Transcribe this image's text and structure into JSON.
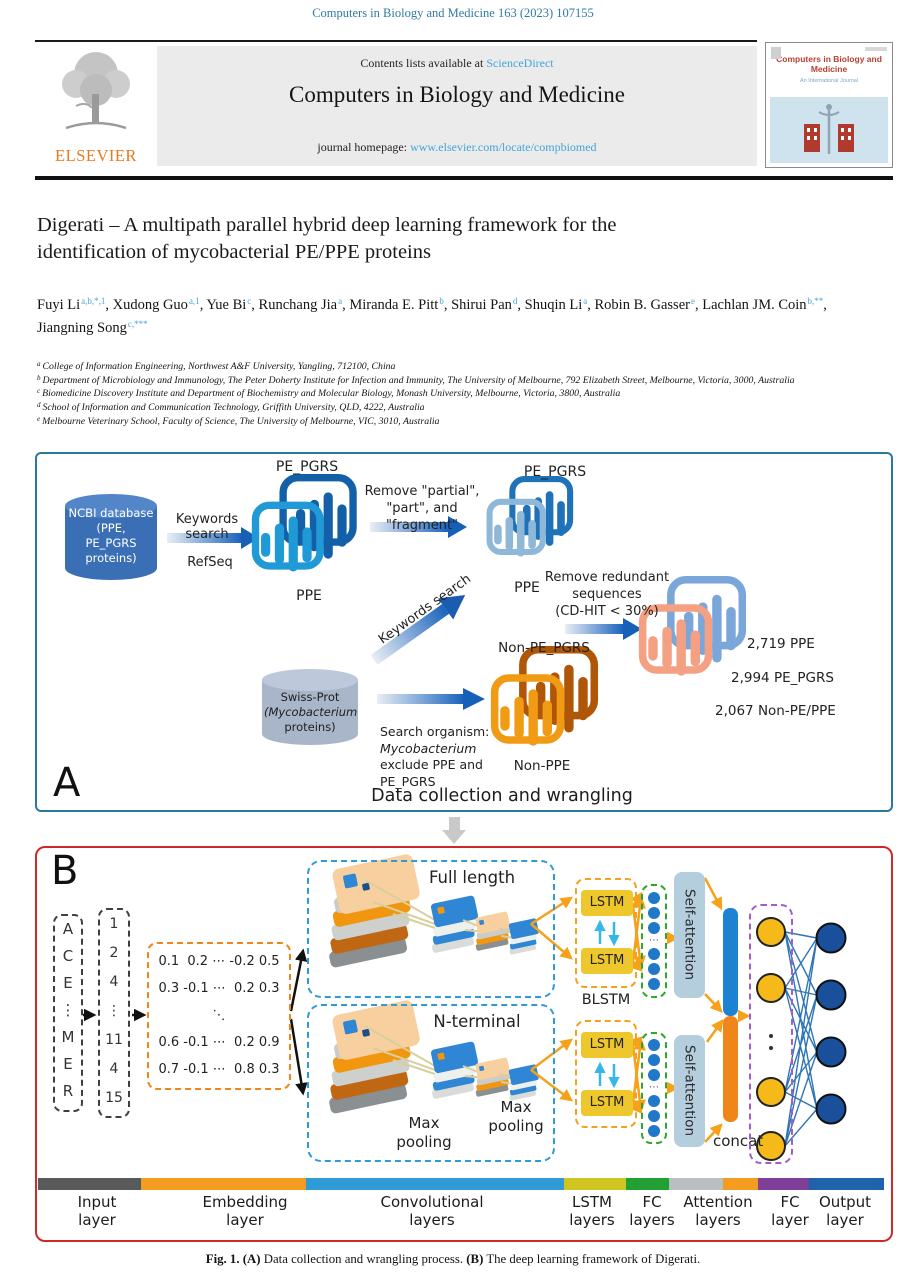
{
  "masthead": {
    "citation": "Computers in Biology and Medicine 163 (2023) 107155",
    "contents_prefix": "Contents lists available at",
    "sciencedirect_link": "ScienceDirect",
    "journal_title": "Computers in Biology and Medicine",
    "homepage_prefix": "journal homepage:",
    "homepage_url": "www.elsevier.com/locate/compbiomed",
    "elsevier_wordmark": "ELSEVIER",
    "cover": {
      "title": "Computers in Biology and Medicine",
      "subtitle": "An International Journal"
    }
  },
  "article": {
    "title": "Digerati – A multipath parallel hybrid deep learning framework for the\nidentification of mycobacterial PE/PPE proteins",
    "authors": [
      {
        "name": "Fuyi Li",
        "sup": "a,b,*,1"
      },
      {
        "name": "Xudong Guo",
        "sup": "a,1"
      },
      {
        "name": "Yue Bi",
        "sup": "c"
      },
      {
        "name": "Runchang Jia",
        "sup": "a"
      },
      {
        "name": "Miranda E. Pitt",
        "sup": "b"
      },
      {
        "name": "Shirui Pan",
        "sup": "d"
      },
      {
        "name": "Shuqin Li",
        "sup": "a"
      },
      {
        "name": "Robin B. Gasser",
        "sup": "e"
      },
      {
        "name": "Lachlan JM. Coin",
        "sup": "b,**"
      },
      {
        "name": "Jiangning Song",
        "sup": "c,***"
      }
    ],
    "affiliations": [
      {
        "sup": "a",
        "text": "College of Information Engineering, Northwest A&F University, Yangling, 712100, China"
      },
      {
        "sup": "b",
        "text": "Department of Microbiology and Immunology, The Peter Doherty Institute for Infection and Immunity, The University of Melbourne, 792 Elizabeth Street, Melbourne, Victoria, 3000, Australia"
      },
      {
        "sup": "c",
        "text": "Biomedicine Discovery Institute and Department of Biochemistry and Molecular Biology, Monash University, Melbourne, Victoria, 3800, Australia"
      },
      {
        "sup": "d",
        "text": "School of Information and Communication Technology, Griffith University, QLD, 4222, Australia"
      },
      {
        "sup": "e",
        "text": "Melbourne Veterinary School, Faculty of Science, The University of Melbourne, VIC, 3010, Australia"
      }
    ]
  },
  "figure": {
    "panelA": {
      "label": "A",
      "caption": "Data collection and wrangling",
      "ncbi_text": "NCBI database\n(PPE,\nPE_PGRS\nproteins)",
      "keywords_search": "Keywords search",
      "refseq": "RefSeq",
      "remove_partial": "Remove \"partial\",\n\"part\", and \"fragment\"",
      "keywords_search_2": "Keywords search",
      "pe_pgrs_1": "PE_PGRS",
      "ppe_1": "PPE",
      "pe_pgrs_2": "PE_PGRS",
      "ppe_2": "PPE",
      "remove_redundant": "Remove redundant\nsequences\n(CD-HIT < 30%)",
      "swissprot_line1": "Swiss-Prot",
      "swissprot_line2": "(Mycobacterium",
      "swissprot_line3": "proteins)",
      "search_organism_line1": "Search organism:",
      "search_organism_line2": "Mycobacterium",
      "search_organism_line3": "exclude PPE and",
      "search_organism_line4": "PE_PGRS",
      "non_pe_pgrs": "Non-PE_PGRS",
      "non_ppe": "Non-PPE",
      "counts": [
        "2,719 PPE",
        "2,994 PE_PGRS",
        "2,067 Non-PE/PPE"
      ]
    },
    "panelB": {
      "label": "B",
      "seq_letters": "A\nC\nE\n⋮\nM\nE\nR",
      "seq_numbers": "1\n2\n4\n⋮\n11\n4\n15",
      "matrix_text": "0.1  0.2 ⋯ -0.2 0.5\n0.3 -0.1 ⋯  0.2 0.3\n⋱\n0.6 -0.1 ⋯  0.2 0.9\n0.7 -0.1 ⋯  0.8 0.3",
      "full_length": "Full length",
      "n_terminal": "N-terminal",
      "max_pooling": "Max\npooling",
      "lstm": "LSTM",
      "blstm": "BLSTM",
      "self_attention": "Self-attention",
      "concat": "concat",
      "layer_labels": [
        "Input\nlayer",
        "Embedding\nlayer",
        "Convolutional\nlayers",
        "LSTM\nlayers",
        "FC\nlayers",
        "Attention\nlayers",
        "FC\nlayer",
        "Output\nlayer"
      ],
      "layer_colors": [
        "#58595b",
        "#f29d1f",
        "#2e9bd6",
        "#cfc420",
        "#22a033",
        "#b9bec2",
        "#f29d1f",
        "#7e3f98",
        "#1f62ae"
      ]
    },
    "caption": {
      "fig": "Fig. 1.",
      "a": "(A)",
      "a_text": "Data collection and wrangling process.",
      "b": "(B)",
      "b_text": "The deep learning framework of Digerati."
    }
  }
}
